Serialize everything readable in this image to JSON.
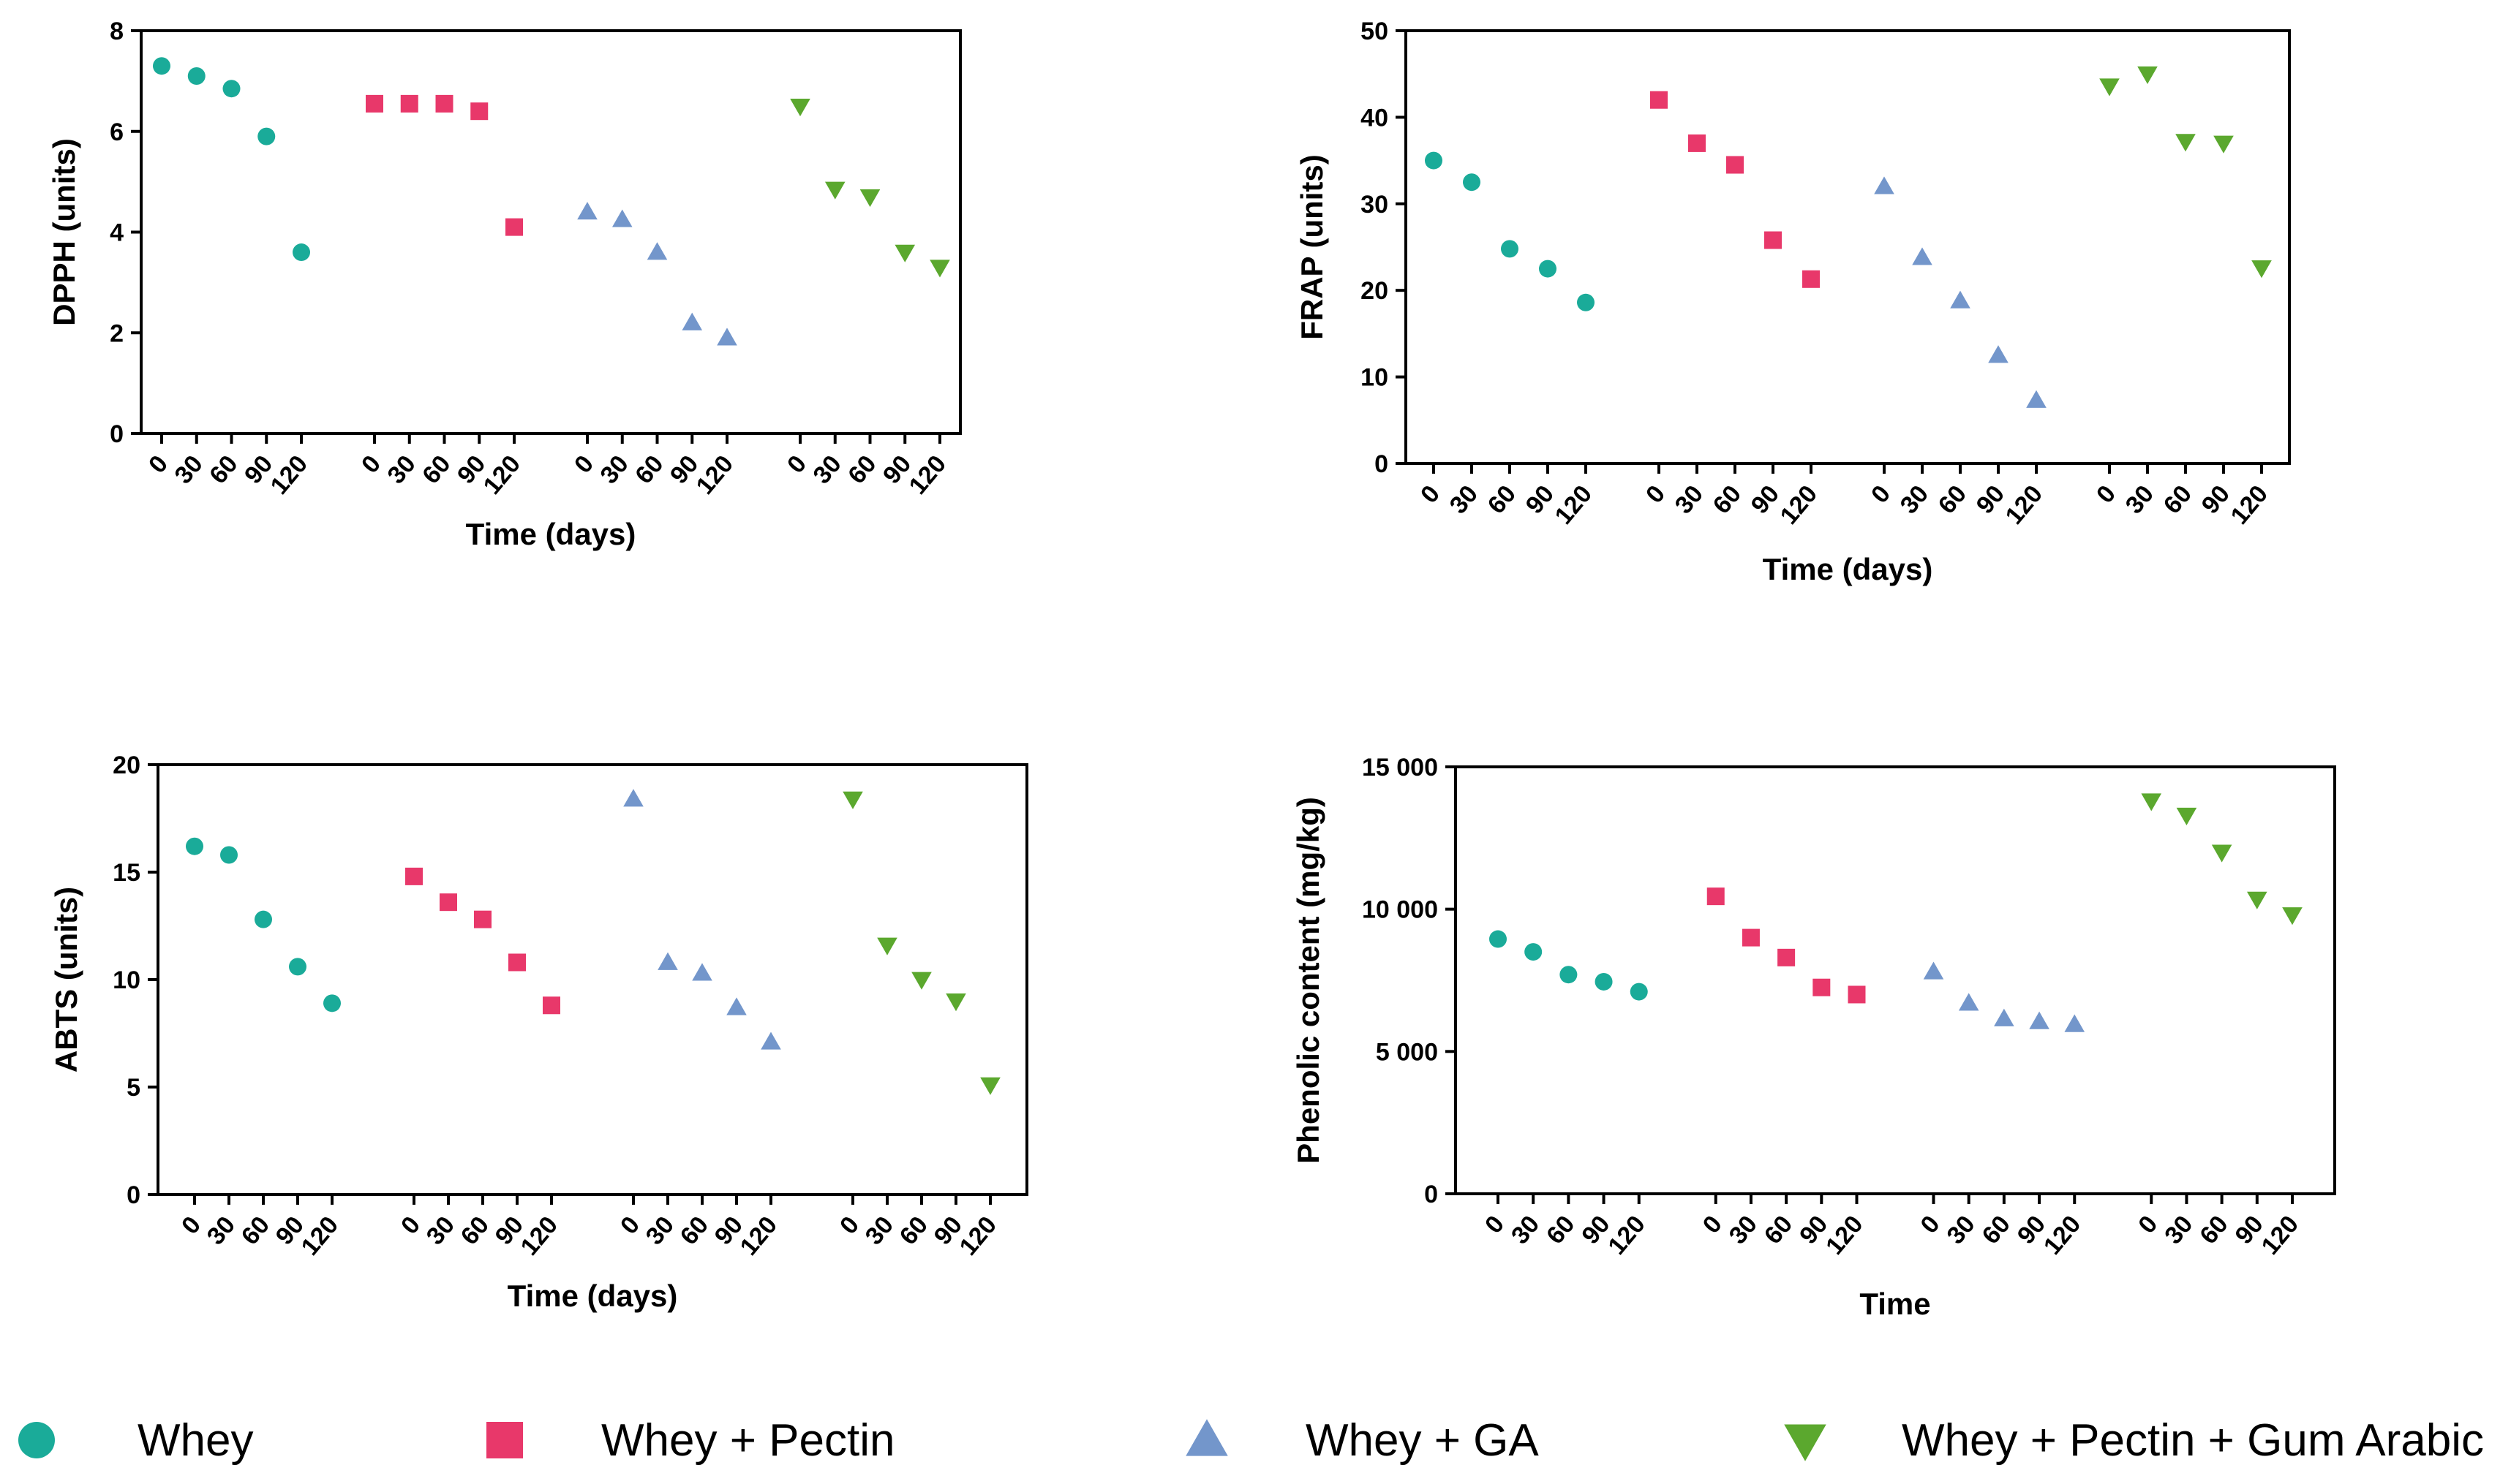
{
  "legend": [
    {
      "name": "Whey",
      "marker": "circle",
      "color": "#1AAB99"
    },
    {
      "name": "Whey + Pectin",
      "marker": "square",
      "color": "#E8386A"
    },
    {
      "name": "Whey + GA",
      "marker": "triangle-up",
      "color": "#7396CB"
    },
    {
      "name": "Whey + Pectin + Gum Arabic",
      "marker": "triangle-down",
      "color": "#5BA82E"
    }
  ],
  "chart_data": [
    {
      "type": "scatter",
      "id": "dpph",
      "title": "",
      "xlabel": "Time (days)",
      "ylabel": "DPPH (units)",
      "ylim": [
        0,
        8
      ],
      "yticks": [
        "0",
        "2",
        "4",
        "6",
        "8"
      ],
      "ytick_values": [
        0,
        2,
        4,
        6,
        8
      ],
      "categories": [
        "0",
        "30",
        "60",
        "90",
        "120"
      ],
      "series": [
        {
          "name": "Whey",
          "values": [
            7.3,
            7.1,
            6.85,
            5.9,
            3.6
          ]
        },
        {
          "name": "Whey + Pectin",
          "values": [
            6.55,
            6.55,
            6.55,
            6.4,
            4.1
          ]
        },
        {
          "name": "Whey + GA",
          "values": [
            4.4,
            4.25,
            3.6,
            2.2,
            1.9
          ]
        },
        {
          "name": "Whey + Pectin + Gum Arabic",
          "values": [
            6.5,
            4.85,
            4.7,
            3.6,
            3.3
          ]
        }
      ]
    },
    {
      "type": "scatter",
      "id": "frap",
      "title": "",
      "xlabel": "Time (days)",
      "ylabel": "FRAP (units)",
      "ylim": [
        0,
        50
      ],
      "yticks": [
        "0",
        "10",
        "20",
        "30",
        "40",
        "50"
      ],
      "ytick_values": [
        0,
        10,
        20,
        30,
        40,
        50
      ],
      "categories": [
        "0",
        "30",
        "60",
        "90",
        "120"
      ],
      "series": [
        {
          "name": "Whey",
          "values": [
            35,
            32.5,
            24.8,
            22.5,
            18.6
          ]
        },
        {
          "name": "Whey + Pectin",
          "values": [
            42,
            37,
            34.5,
            25.8,
            21.3
          ]
        },
        {
          "name": "Whey + GA",
          "values": [
            32,
            23.8,
            18.8,
            12.5,
            7.3
          ]
        },
        {
          "name": "Whey + Pectin + Gum Arabic",
          "values": [
            43.6,
            45,
            37.2,
            37,
            22.6
          ]
        }
      ]
    },
    {
      "type": "scatter",
      "id": "abts",
      "title": "",
      "xlabel": "Time (days)",
      "ylabel": "ABTS (units)",
      "ylim": [
        0,
        20
      ],
      "yticks": [
        "0",
        "5",
        "10",
        "15",
        "20"
      ],
      "ytick_values": [
        0,
        5,
        10,
        15,
        20
      ],
      "categories": [
        "0",
        "30",
        "60",
        "90",
        "120"
      ],
      "series": [
        {
          "name": "Whey",
          "values": [
            16.2,
            15.8,
            12.8,
            10.6,
            8.9
          ]
        },
        {
          "name": "Whey + Pectin",
          "values": [
            14.8,
            13.6,
            12.8,
            10.8,
            8.8
          ]
        },
        {
          "name": "Whey + GA",
          "values": [
            18.4,
            10.8,
            10.3,
            8.7,
            7.1
          ]
        },
        {
          "name": "Whey + Pectin + Gum Arabic",
          "values": [
            18.4,
            11.6,
            10,
            9,
            5.1
          ]
        }
      ]
    },
    {
      "type": "scatter",
      "id": "phenolic",
      "title": "",
      "xlabel": "Time",
      "ylabel": "Phenolic content (mg/kg)",
      "ylim": [
        0,
        15000
      ],
      "yticks": [
        "0",
        "5 000",
        "10 000",
        "15 000"
      ],
      "ytick_values": [
        0,
        5000,
        10000,
        15000
      ],
      "categories": [
        "0",
        "30",
        "60",
        "90",
        "120"
      ],
      "series": [
        {
          "name": "Whey",
          "values": [
            8950,
            8500,
            7700,
            7450,
            7100
          ]
        },
        {
          "name": "Whey + Pectin",
          "values": [
            10450,
            9000,
            8300,
            7250,
            7000
          ]
        },
        {
          "name": "Whey + GA",
          "values": [
            7800,
            6700,
            6150,
            6050,
            5950
          ]
        },
        {
          "name": "Whey + Pectin + Gum Arabic",
          "values": [
            13800,
            13300,
            12000,
            10350,
            9800
          ]
        }
      ]
    }
  ]
}
